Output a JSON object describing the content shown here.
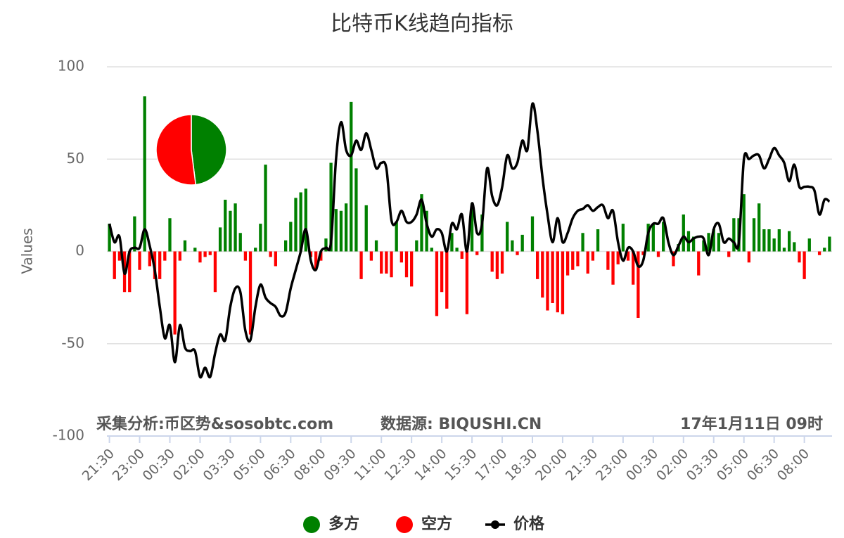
{
  "chart_data": [
    {
      "type": "bar",
      "title": "比特币K线趋向指标",
      "y_label": "Values",
      "annotations": [
        "采集分析:币区势&sosobtc.com",
        "数据源:  BIQUSHI.CN",
        "17年1月11日  09时"
      ],
      "categories": [
        "21:30",
        null,
        null,
        null,
        null,
        null,
        "23:00",
        null,
        null,
        null,
        null,
        null,
        "00:30",
        null,
        null,
        null,
        null,
        null,
        "02:00",
        null,
        null,
        null,
        null,
        null,
        "03:30",
        null,
        null,
        null,
        null,
        null,
        "05:00",
        null,
        null,
        null,
        null,
        null,
        "06:30",
        null,
        null,
        null,
        null,
        null,
        "08:00",
        null,
        null,
        null,
        null,
        null,
        "09:30",
        null,
        null,
        null,
        null,
        null,
        "11:00",
        null,
        null,
        null,
        null,
        null,
        "12:30",
        null,
        null,
        null,
        null,
        null,
        "14:00",
        null,
        null,
        null,
        null,
        null,
        "15:30",
        null,
        null,
        null,
        null,
        null,
        "17:00",
        null,
        null,
        null,
        null,
        null,
        "18:30",
        null,
        null,
        null,
        null,
        null,
        "20:00",
        null,
        null,
        null,
        null,
        null,
        "21:30",
        null,
        null,
        null,
        null,
        null,
        "23:00",
        null,
        null,
        null,
        null,
        null,
        "00:30",
        null,
        null,
        null,
        null,
        null,
        "02:00",
        null,
        null,
        null,
        null,
        null,
        "03:30",
        null,
        null,
        null,
        null,
        null,
        "05:00",
        null,
        null,
        null,
        null,
        null,
        "06:30",
        null,
        null,
        null,
        null,
        null,
        "08:00",
        null,
        null,
        null,
        null,
        null
      ],
      "series": [
        {
          "name": "多方",
          "type": "bar",
          "color": "#008000",
          "values": [
            15,
            null,
            null,
            null,
            null,
            19,
            null,
            84,
            null,
            null,
            null,
            null,
            18,
            null,
            null,
            6,
            null,
            2,
            null,
            null,
            null,
            null,
            13,
            28,
            22,
            26,
            10,
            null,
            null,
            2,
            15,
            47,
            null,
            null,
            null,
            6,
            16,
            29,
            32,
            34,
            null,
            null,
            null,
            7,
            48,
            23,
            22,
            26,
            81,
            45,
            null,
            25,
            null,
            6,
            null,
            null,
            null,
            16,
            null,
            null,
            null,
            6,
            31,
            22,
            2,
            null,
            null,
            null,
            10,
            2,
            null,
            null,
            26,
            null,
            20,
            null,
            null,
            null,
            null,
            16,
            6,
            null,
            9,
            null,
            19,
            null,
            null,
            null,
            null,
            null,
            null,
            null,
            null,
            null,
            10,
            null,
            null,
            12,
            null,
            null,
            null,
            null,
            15,
            null,
            null,
            null,
            null,
            15,
            15,
            null,
            16,
            null,
            null,
            4,
            20,
            11,
            8,
            null,
            6,
            10,
            12,
            10,
            null,
            null,
            18,
            18,
            31,
            null,
            18,
            26,
            12,
            12,
            7,
            12,
            2,
            11,
            5,
            null,
            null,
            7,
            null,
            null,
            2,
            8
          ]
        },
        {
          "name": "空方",
          "type": "bar",
          "color": "#ff0000",
          "values": [
            null,
            -15,
            -5,
            -22,
            -22,
            null,
            -10,
            null,
            -8,
            -15,
            -15,
            -5,
            null,
            -45,
            -5,
            null,
            null,
            null,
            -6,
            -3,
            -2,
            -22,
            null,
            null,
            null,
            null,
            null,
            -5,
            -45,
            null,
            null,
            null,
            -3,
            -8,
            null,
            null,
            null,
            null,
            null,
            null,
            -3,
            -10,
            -5,
            null,
            null,
            null,
            null,
            null,
            null,
            null,
            -15,
            null,
            -5,
            null,
            -12,
            -12,
            -14,
            null,
            -6,
            -14,
            -19,
            null,
            null,
            null,
            null,
            -35,
            -22,
            -31,
            null,
            null,
            -4,
            -34,
            null,
            -2,
            null,
            null,
            -11,
            -15,
            -12,
            null,
            null,
            -2,
            null,
            null,
            null,
            -15,
            -25,
            -32,
            -28,
            -33,
            -34,
            -13,
            -10,
            -8,
            null,
            -12,
            -5,
            null,
            null,
            -10,
            -18,
            -7,
            null,
            -5,
            -18,
            -36,
            -2,
            null,
            null,
            -3,
            null,
            null,
            -8,
            null,
            null,
            null,
            null,
            -13,
            null,
            null,
            null,
            null,
            null,
            -3,
            null,
            null,
            null,
            -6,
            null,
            null,
            null,
            null,
            null,
            null,
            null,
            null,
            null,
            -6,
            -15,
            null,
            null,
            -2,
            null,
            null
          ]
        },
        {
          "name": "价格",
          "type": "line",
          "color": "#000000",
          "values": [
            15,
            5,
            8,
            -12,
            0,
            2,
            2,
            12,
            3,
            -10,
            -30,
            -47,
            -40,
            -60,
            -40,
            -52,
            -54,
            -54,
            -68,
            -63,
            -68,
            -55,
            -45,
            -48,
            -30,
            -20,
            -22,
            -43,
            -48,
            -30,
            -18,
            -25,
            -28,
            -30,
            -35,
            -33,
            -20,
            -10,
            0,
            12,
            -5,
            -10,
            0,
            2,
            5,
            50,
            70,
            55,
            52,
            60,
            55,
            64,
            55,
            45,
            48,
            45,
            17,
            16,
            22,
            16,
            16,
            20,
            28,
            15,
            8,
            12,
            10,
            0,
            15,
            12,
            20,
            0,
            26,
            10,
            15,
            45,
            30,
            25,
            35,
            52,
            45,
            48,
            60,
            55,
            80,
            65,
            40,
            20,
            5,
            18,
            5,
            10,
            18,
            22,
            23,
            25,
            22,
            24,
            25,
            18,
            22,
            5,
            -5,
            2,
            0,
            -8,
            -5,
            10,
            15,
            15,
            18,
            5,
            -2,
            3,
            8,
            5,
            7,
            8,
            7,
            -2,
            12,
            15,
            5,
            7,
            5,
            5,
            50,
            50,
            52,
            52,
            45,
            50,
            56,
            52,
            48,
            38,
            47,
            35,
            35,
            35,
            33,
            20,
            28,
            27
          ]
        }
      ],
      "ylim": [
        -100,
        100
      ],
      "yticks": [
        -100,
        -50,
        0,
        50,
        100
      ],
      "grid": true,
      "legend": "bottom"
    },
    {
      "type": "pie",
      "values": [
        48,
        52
      ],
      "colors": [
        "#008000",
        "#ff0000"
      ]
    }
  ]
}
